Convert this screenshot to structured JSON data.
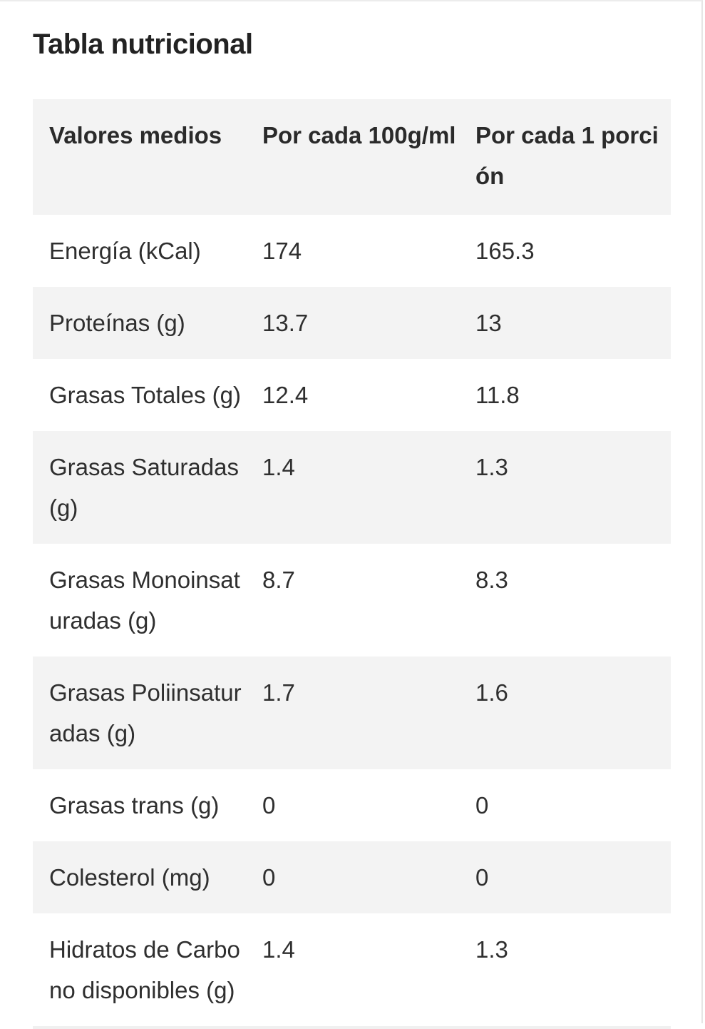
{
  "section": {
    "title": "Tabla nutricional"
  },
  "table": {
    "headers": [
      "Valores medios",
      "Por cada 100g/ml",
      "Por cada 1 porción"
    ],
    "rows": [
      [
        "Energía (kCal)",
        "174",
        "165.3"
      ],
      [
        "Proteínas (g)",
        "13.7",
        "13"
      ],
      [
        "Grasas Totales (g)",
        "12.4",
        "11.8"
      ],
      [
        "Grasas Saturadas (g)",
        "1.4",
        "1.3"
      ],
      [
        "Grasas Monoinsaturadas (g)",
        "8.7",
        "8.3"
      ],
      [
        "Grasas Poliinsaturadas (g)",
        "1.7",
        "1.6"
      ],
      [
        "Grasas trans (g)",
        "0",
        "0"
      ],
      [
        "Colesterol (mg)",
        "0",
        "0"
      ],
      [
        "Hidratos de Carbono disponibles (g)",
        "1.4",
        "1.3"
      ]
    ]
  },
  "colors": {
    "stripe": "#f3f3f3",
    "text": "#2f2f2f"
  }
}
